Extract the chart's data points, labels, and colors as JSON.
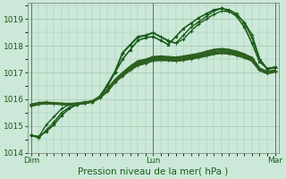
{
  "title": "Pression niveau de la mer( hPa )",
  "bg_color": "#cce8d8",
  "grid_color": "#a0c8b0",
  "ylim": [
    1014.0,
    1019.6
  ],
  "yticks": [
    1014,
    1015,
    1016,
    1017,
    1018,
    1019
  ],
  "x_days": [
    "Dim",
    "Lun",
    "Mar"
  ],
  "day_positions": [
    0,
    16,
    32
  ],
  "n_points": 33,
  "series": [
    {
      "values": [
        1014.65,
        1014.6,
        1014.8,
        1015.05,
        1015.4,
        1015.65,
        1015.8,
        1015.85,
        1015.9,
        1016.1,
        1016.5,
        1017.0,
        1017.5,
        1017.85,
        1018.2,
        1018.3,
        1018.35,
        1018.2,
        1018.05,
        1018.35,
        1018.65,
        1018.85,
        1019.05,
        1019.2,
        1019.35,
        1019.4,
        1019.3,
        1019.1,
        1018.7,
        1018.1,
        1017.4,
        1017.15,
        1017.2
      ],
      "color": "#1a5c1a",
      "lw": 1.2,
      "marker": ".",
      "ms": 3.5
    },
    {
      "values": [
        1014.65,
        1014.55,
        1014.85,
        1015.15,
        1015.5,
        1015.7,
        1015.8,
        1015.85,
        1015.9,
        1016.1,
        1016.55,
        1017.05,
        1017.75,
        1018.05,
        1018.35,
        1018.4,
        1018.5,
        1018.35,
        1018.2,
        1018.1,
        1018.4,
        1018.7,
        1018.9,
        1019.1,
        1019.3,
        1019.4,
        1019.35,
        1019.2,
        1018.85,
        1018.3,
        1017.5,
        1017.15,
        1017.2
      ],
      "color": "#1a5c1a",
      "lw": 1.0,
      "marker": "+",
      "ms": 3.0
    },
    {
      "values": [
        1014.65,
        1014.6,
        1015.05,
        1015.35,
        1015.65,
        1015.8,
        1015.82,
        1015.88,
        1015.92,
        1016.12,
        1016.5,
        1017.0,
        1017.72,
        1018.02,
        1018.32,
        1018.38,
        1018.48,
        1018.33,
        1018.18,
        1018.1,
        1018.25,
        1018.55,
        1018.82,
        1019.0,
        1019.18,
        1019.3,
        1019.28,
        1019.15,
        1018.88,
        1018.42,
        1017.52,
        1017.12,
        1017.18
      ],
      "color": "#1a5c1a",
      "lw": 1.0,
      "marker": "+",
      "ms": 2.5
    },
    {
      "values": [
        1015.75,
        1015.82,
        1015.85,
        1015.84,
        1015.83,
        1015.82,
        1015.84,
        1015.88,
        1015.92,
        1016.08,
        1016.35,
        1016.72,
        1016.98,
        1017.22,
        1017.42,
        1017.48,
        1017.58,
        1017.6,
        1017.58,
        1017.56,
        1017.6,
        1017.65,
        1017.7,
        1017.78,
        1017.85,
        1017.88,
        1017.85,
        1017.78,
        1017.68,
        1017.55,
        1017.15,
        1017.02,
        1017.08
      ],
      "color": "#2d6020",
      "lw": 1.8,
      "marker": "+",
      "ms": 2.5
    },
    {
      "values": [
        1015.78,
        1015.84,
        1015.86,
        1015.84,
        1015.82,
        1015.81,
        1015.83,
        1015.87,
        1015.91,
        1016.07,
        1016.32,
        1016.68,
        1016.93,
        1017.16,
        1017.35,
        1017.42,
        1017.52,
        1017.53,
        1017.52,
        1017.5,
        1017.53,
        1017.58,
        1017.63,
        1017.7,
        1017.77,
        1017.8,
        1017.78,
        1017.71,
        1017.62,
        1017.5,
        1017.12,
        1016.99,
        1017.05
      ],
      "color": "#2d6020",
      "lw": 1.8,
      "marker": "+",
      "ms": 2.5
    },
    {
      "values": [
        1015.8,
        1015.86,
        1015.88,
        1015.85,
        1015.83,
        1015.82,
        1015.83,
        1015.87,
        1015.91,
        1016.06,
        1016.3,
        1016.65,
        1016.88,
        1017.1,
        1017.28,
        1017.35,
        1017.45,
        1017.47,
        1017.46,
        1017.44,
        1017.47,
        1017.52,
        1017.57,
        1017.63,
        1017.7,
        1017.73,
        1017.71,
        1017.65,
        1017.56,
        1017.45,
        1017.09,
        1016.97,
        1017.03
      ],
      "color": "#2d6020",
      "lw": 1.8,
      "marker": "+",
      "ms": 2.5
    }
  ]
}
